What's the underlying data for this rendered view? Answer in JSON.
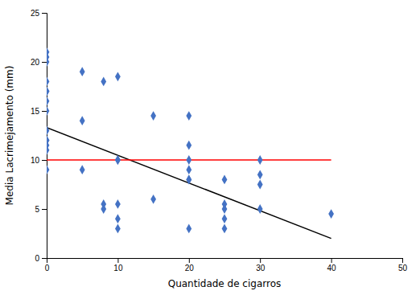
{
  "chart_data": {
    "type": "scatter",
    "xlabel": "Quantidade de cigarros",
    "ylabel": "Media Lacrimejamento (mm)",
    "xlim": [
      0,
      50
    ],
    "ylim": [
      0,
      25
    ],
    "xticks": [
      0,
      10,
      20,
      30,
      40,
      50
    ],
    "yticks": [
      0,
      5,
      10,
      15,
      20,
      25
    ],
    "grid": false,
    "series": [
      {
        "type": "scatter",
        "color": "#4472C4",
        "marker": "diamond",
        "x": [
          0,
          0,
          0,
          0,
          0,
          0,
          0,
          0,
          0,
          0,
          0,
          0,
          0,
          0,
          5,
          5,
          5,
          8,
          8,
          8,
          10,
          10,
          10,
          10,
          10,
          10,
          15,
          15,
          20,
          20,
          20,
          20,
          20,
          20,
          20,
          25,
          25,
          25,
          25,
          25,
          30,
          30,
          30,
          30,
          40
        ],
        "values": [
          21,
          20.5,
          20,
          18,
          17,
          17,
          16,
          15,
          13,
          12,
          12,
          11.5,
          11,
          9,
          19,
          14,
          9,
          18,
          5.5,
          5,
          18.5,
          10,
          10,
          5.5,
          4,
          3,
          14.5,
          6,
          14.5,
          11.5,
          10,
          9,
          8,
          8,
          3,
          8,
          5.5,
          5,
          4,
          3,
          10,
          8.5,
          7.5,
          5,
          4.5
        ]
      },
      {
        "type": "line",
        "color": "#000000",
        "x": [
          0,
          40
        ],
        "values": [
          13.3,
          2.0
        ]
      },
      {
        "type": "line",
        "color": "#FF0000",
        "x": [
          0,
          40
        ],
        "values": [
          10.0,
          10.0
        ]
      }
    ]
  }
}
